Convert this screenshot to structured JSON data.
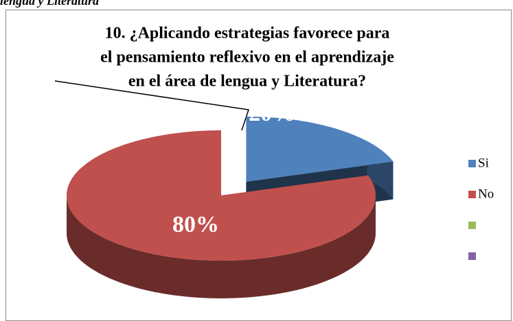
{
  "header_text": "lengua y Literatura",
  "chart_data": {
    "type": "pie3d",
    "title_lines": [
      "10.      ¿Aplicando estrategias  favorece  para",
      "el  pensamiento  reflexivo  en el aprendizaje",
      "en el  área de lengua  y  Literatura?"
    ],
    "categories": [
      "Si",
      "No",
      null,
      null
    ],
    "values": [
      20,
      80,
      null,
      null
    ],
    "value_labels": [
      "20%",
      "80%",
      null,
      null
    ],
    "colors": [
      "#4f81bd",
      "#c0504d",
      "#9bbb59",
      "#8064a2"
    ],
    "exploded": [
      true,
      false,
      false,
      false
    ],
    "legend": "right"
  }
}
